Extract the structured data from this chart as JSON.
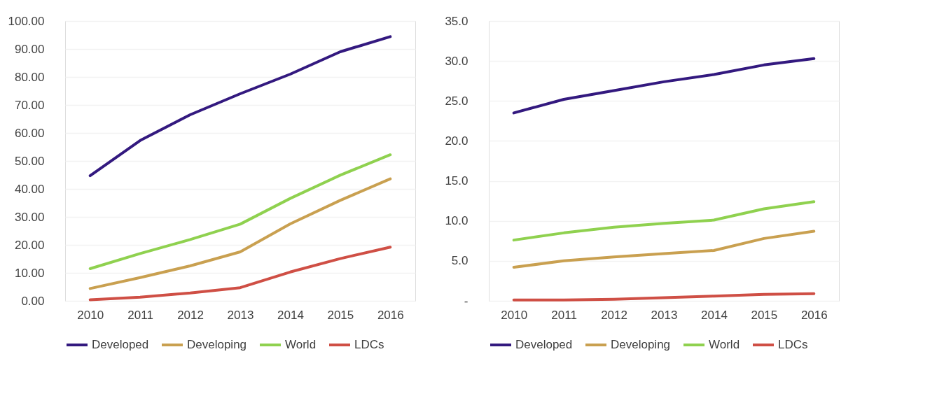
{
  "chart_data": [
    {
      "type": "line",
      "categories": [
        "2010",
        "2011",
        "2012",
        "2013",
        "2014",
        "2015",
        "2016"
      ],
      "series": [
        {
          "name": "Developed",
          "color": "#33197f",
          "values": [
            44.7,
            57.3,
            66.5,
            74.0,
            81.0,
            89.0,
            94.4
          ]
        },
        {
          "name": "Developing",
          "color": "#c9a050",
          "values": [
            4.4,
            8.3,
            12.5,
            17.5,
            27.5,
            35.9,
            43.6
          ]
        },
        {
          "name": "World",
          "color": "#8fd14f",
          "values": [
            11.5,
            16.9,
            21.9,
            27.4,
            36.6,
            44.9,
            52.2
          ]
        },
        {
          "name": "LDCs",
          "color": "#cf4f45",
          "values": [
            0.4,
            1.3,
            2.8,
            4.7,
            10.3,
            15.1,
            19.2
          ]
        }
      ],
      "ylim": [
        0,
        100
      ],
      "yticks": [
        {
          "value": 0,
          "label": "0.00"
        },
        {
          "value": 10,
          "label": "10.00"
        },
        {
          "value": 20,
          "label": "20.00"
        },
        {
          "value": 30,
          "label": "30.00"
        },
        {
          "value": 40,
          "label": "40.00"
        },
        {
          "value": 50,
          "label": "50.00"
        },
        {
          "value": 60,
          "label": "60.00"
        },
        {
          "value": 70,
          "label": "70.00"
        },
        {
          "value": 80,
          "label": "80.00"
        },
        {
          "value": 90,
          "label": "90.00"
        },
        {
          "value": 100,
          "label": "100.00"
        }
      ],
      "grid": "y",
      "legend": "bottom",
      "marker": "none",
      "line_style": "solid"
    },
    {
      "type": "line",
      "categories": [
        "2010",
        "2011",
        "2012",
        "2013",
        "2014",
        "2015",
        "2016"
      ],
      "series": [
        {
          "name": "Developed",
          "color": "#33197f",
          "values": [
            23.5,
            25.2,
            26.3,
            27.4,
            28.3,
            29.5,
            30.3
          ]
        },
        {
          "name": "Developing",
          "color": "#c9a050",
          "values": [
            4.2,
            5.0,
            5.5,
            5.9,
            6.3,
            7.8,
            8.7
          ]
        },
        {
          "name": "World",
          "color": "#8fd14f",
          "values": [
            7.6,
            8.5,
            9.2,
            9.7,
            10.1,
            11.5,
            12.4
          ]
        },
        {
          "name": "LDCs",
          "color": "#cf4f45",
          "values": [
            0.1,
            0.1,
            0.2,
            0.4,
            0.6,
            0.8,
            0.9
          ]
        }
      ],
      "ylim": [
        0,
        35
      ],
      "yticks": [
        {
          "value": 0,
          "label": "-"
        },
        {
          "value": 5,
          "label": "5.0"
        },
        {
          "value": 10,
          "label": "10.0"
        },
        {
          "value": 15,
          "label": "15.0"
        },
        {
          "value": 20,
          "label": "20.0"
        },
        {
          "value": 25,
          "label": "25.0"
        },
        {
          "value": 30,
          "label": "30.0"
        },
        {
          "value": 35,
          "label": "35.0"
        }
      ],
      "grid": "y",
      "legend": "bottom",
      "marker": "none",
      "line_style": "solid"
    }
  ]
}
